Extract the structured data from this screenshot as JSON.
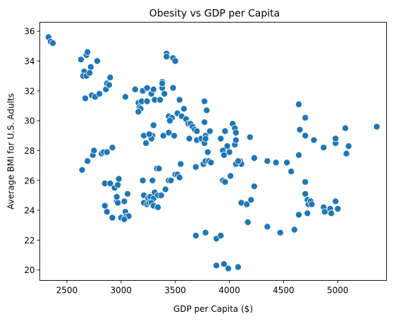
{
  "chart_data": {
    "type": "scatter",
    "title": "Obesity vs GDP per Capita",
    "xlabel": "GDP per Capita ($)",
    "ylabel": "Average BMI for U.S. Adults",
    "xlim": [
      2250,
      5450
    ],
    "ylim": [
      19.3,
      36.6
    ],
    "xticks": [
      2500,
      3000,
      3500,
      4000,
      4500,
      5000
    ],
    "yticks": [
      20,
      22,
      24,
      26,
      28,
      30,
      32,
      34,
      36
    ],
    "grid": false,
    "legend": "none",
    "marker_color": "#1f77b4",
    "points": [
      [
        2330,
        35.6
      ],
      [
        2350,
        35.3
      ],
      [
        2370,
        35.2
      ],
      [
        2630,
        34.1
      ],
      [
        2680,
        34.4
      ],
      [
        2690,
        34.6
      ],
      [
        2720,
        33.6
      ],
      [
        2700,
        33.2
      ],
      [
        2660,
        33.3
      ],
      [
        2650,
        33.0
      ],
      [
        2680,
        33.0
      ],
      [
        2710,
        33.2
      ],
      [
        2780,
        34.0
      ],
      [
        2670,
        31.5
      ],
      [
        2730,
        31.7
      ],
      [
        2760,
        31.6
      ],
      [
        2800,
        31.8
      ],
      [
        2860,
        32.1
      ],
      [
        2870,
        32.5
      ],
      [
        2890,
        32.4
      ],
      [
        2900,
        32.9
      ],
      [
        3040,
        31.6
      ],
      [
        3130,
        32.1
      ],
      [
        3200,
        32.0
      ],
      [
        3240,
        32.2
      ],
      [
        3280,
        31.8
      ],
      [
        3300,
        32.1
      ],
      [
        3160,
        31.2
      ],
      [
        3190,
        31.3
      ],
      [
        3240,
        31.3
      ],
      [
        3170,
        30.9
      ],
      [
        3180,
        30.8
      ],
      [
        3160,
        30.6
      ],
      [
        3310,
        31.4
      ],
      [
        3360,
        31.4
      ],
      [
        3380,
        32.2
      ],
      [
        3400,
        31.8
      ],
      [
        3380,
        32.6
      ],
      [
        3380,
        32.5
      ],
      [
        3480,
        32.2
      ],
      [
        3420,
        34.5
      ],
      [
        3420,
        34.3
      ],
      [
        3480,
        34.2
      ],
      [
        3500,
        34.0
      ],
      [
        3440,
        30.3
      ],
      [
        3470,
        30.2
      ],
      [
        3520,
        30.5
      ],
      [
        3560,
        30.3
      ],
      [
        3580,
        30.8
      ],
      [
        3600,
        30.1
      ],
      [
        3620,
        29.8
      ],
      [
        3540,
        31.4
      ],
      [
        3300,
        29.7
      ],
      [
        3290,
        29.0
      ],
      [
        3280,
        28.8
      ],
      [
        3210,
        29.0
      ],
      [
        3230,
        28.5
      ],
      [
        3260,
        29.1
      ],
      [
        3390,
        29.0
      ],
      [
        3440,
        29.2
      ],
      [
        3490,
        29.0
      ],
      [
        3450,
        30.0
      ],
      [
        3640,
        29.8
      ],
      [
        3660,
        29.6
      ],
      [
        3680,
        29.4
      ],
      [
        3700,
        29.3
      ],
      [
        3700,
        28.7
      ],
      [
        3740,
        28.8
      ],
      [
        3770,
        28.5
      ],
      [
        3780,
        29.0
      ],
      [
        3770,
        29.9
      ],
      [
        3790,
        30.7
      ],
      [
        3770,
        31.3
      ],
      [
        3780,
        28.8
      ],
      [
        3800,
        27.9
      ],
      [
        3820,
        29.3
      ],
      [
        3630,
        28.8
      ],
      [
        2640,
        26.7
      ],
      [
        2690,
        27.3
      ],
      [
        2740,
        27.7
      ],
      [
        2750,
        28.0
      ],
      [
        2820,
        27.8
      ],
      [
        2840,
        27.9
      ],
      [
        2870,
        27.9
      ],
      [
        2920,
        28.2
      ],
      [
        3690,
        26.9
      ],
      [
        3760,
        27.1
      ],
      [
        3780,
        27.3
      ],
      [
        3810,
        27.3
      ],
      [
        3830,
        27.2
      ],
      [
        3920,
        28.8
      ],
      [
        3940,
        28.0
      ],
      [
        3950,
        27.7
      ],
      [
        3980,
        28.3
      ],
      [
        4000,
        27.9
      ],
      [
        3960,
        29.3
      ],
      [
        4030,
        29.8
      ],
      [
        4050,
        29.5
      ],
      [
        4050,
        28.4
      ],
      [
        4060,
        29.2
      ],
      [
        4060,
        28.7
      ],
      [
        4100,
        27.3
      ],
      [
        4110,
        27.1
      ],
      [
        4060,
        27.1
      ],
      [
        4080,
        27.3
      ],
      [
        4190,
        28.9
      ],
      [
        4230,
        27.5
      ],
      [
        4350,
        27.3
      ],
      [
        4430,
        27.2
      ],
      [
        4530,
        27.2
      ],
      [
        4570,
        26.6
      ],
      [
        4640,
        27.7
      ],
      [
        4640,
        31.1
      ],
      [
        4700,
        30.2
      ],
      [
        4650,
        29.4
      ],
      [
        4700,
        29.0
      ],
      [
        4780,
        28.7
      ],
      [
        4870,
        28.2
      ],
      [
        4980,
        28.5
      ],
      [
        5070,
        29.5
      ],
      [
        5100,
        28.3
      ],
      [
        5080,
        27.8
      ],
      [
        5360,
        29.6
      ],
      [
        4980,
        28.8
      ],
      [
        2850,
        25.8
      ],
      [
        2900,
        25.8
      ],
      [
        2940,
        25.5
      ],
      [
        2970,
        25.7
      ],
      [
        2980,
        26.1
      ],
      [
        2960,
        24.6
      ],
      [
        2970,
        24.5
      ],
      [
        3030,
        24.6
      ],
      [
        2960,
        24.9
      ],
      [
        2850,
        24.3
      ],
      [
        2870,
        23.9
      ],
      [
        2920,
        23.5
      ],
      [
        3000,
        23.5
      ],
      [
        3040,
        23.9
      ],
      [
        3050,
        23.6
      ],
      [
        3070,
        23.6
      ],
      [
        3030,
        23.4
      ],
      [
        3060,
        25.1
      ],
      [
        3200,
        26.0
      ],
      [
        3290,
        26.0
      ],
      [
        3330,
        26.8
      ],
      [
        3350,
        26.8
      ],
      [
        3440,
        26.0
      ],
      [
        3460,
        26.0
      ],
      [
        3500,
        26.4
      ],
      [
        3520,
        26.4
      ],
      [
        3540,
        26.2
      ],
      [
        3550,
        27.1
      ],
      [
        3210,
        25.0
      ],
      [
        3250,
        24.8
      ],
      [
        3270,
        24.9
      ],
      [
        3300,
        24.8
      ],
      [
        3310,
        25.2
      ],
      [
        3340,
        25.0
      ],
      [
        3370,
        25.0
      ],
      [
        3410,
        25.4
      ],
      [
        3210,
        24.5
      ],
      [
        3240,
        24.4
      ],
      [
        3260,
        24.5
      ],
      [
        3280,
        24.5
      ],
      [
        3300,
        24.3
      ],
      [
        3340,
        24.2
      ],
      [
        3940,
        26.0
      ],
      [
        3960,
        25.9
      ],
      [
        4010,
        26.3
      ],
      [
        4110,
        24.5
      ],
      [
        4160,
        24.4
      ],
      [
        4200,
        24.7
      ],
      [
        4230,
        25.6
      ],
      [
        4170,
        23.2
      ],
      [
        4350,
        22.9
      ],
      [
        4470,
        22.5
      ],
      [
        4600,
        22.7
      ],
      [
        4700,
        25.9
      ],
      [
        4700,
        25.1
      ],
      [
        4720,
        24.7
      ],
      [
        4730,
        24.4
      ],
      [
        4750,
        24.6
      ],
      [
        4760,
        24.4
      ],
      [
        4870,
        24.2
      ],
      [
        4880,
        23.9
      ],
      [
        4930,
        24.1
      ],
      [
        4940,
        23.8
      ],
      [
        4980,
        24.6
      ],
      [
        5000,
        24.1
      ],
      [
        4720,
        23.8
      ],
      [
        4640,
        23.7
      ],
      [
        3690,
        22.3
      ],
      [
        3780,
        22.5
      ],
      [
        3880,
        22.1
      ],
      [
        3920,
        22.3
      ],
      [
        3880,
        20.3
      ],
      [
        3950,
        20.4
      ],
      [
        3990,
        20.1
      ],
      [
        4080,
        20.2
      ]
    ]
  }
}
